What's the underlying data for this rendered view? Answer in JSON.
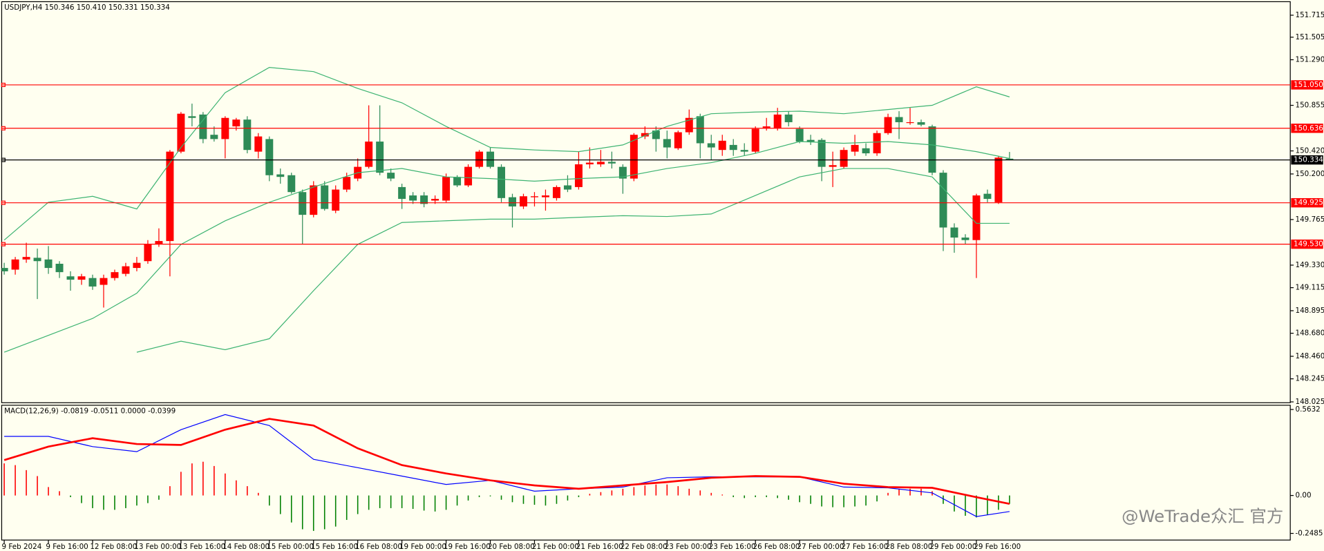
{
  "chart_data": [
    {
      "type": "candlestick",
      "title": "USDJPY,H4  150.346 150.410 150.331 150.334",
      "categories": [
        "9 Feb 2024",
        null,
        null,
        null,
        "9 Feb 16:00",
        null,
        null,
        null,
        "12 Feb 08:00",
        null,
        null,
        null,
        "13 Feb 00:00",
        null,
        null,
        null,
        "13 Feb 16:00",
        null,
        null,
        null,
        "14 Feb 08:00",
        null,
        null,
        null,
        "15 Feb 00:00",
        null,
        null,
        null,
        "15 Feb 16:00",
        null,
        null,
        null,
        "16 Feb 08:00",
        null,
        null,
        null,
        "19 Feb 00:00",
        null,
        null,
        null,
        "19 Feb 16:00",
        null,
        null,
        null,
        "20 Feb 08:00",
        null,
        null,
        null,
        "21 Feb 00:00",
        null,
        null,
        null,
        "21 Feb 16:00",
        null,
        null,
        null,
        "22 Feb 08:00",
        null,
        null,
        null,
        "23 Feb 00:00",
        null,
        null,
        null,
        "23 Feb 16:00",
        null,
        null,
        null,
        "26 Feb 08:00",
        null,
        null,
        null,
        "27 Feb 00:00",
        null,
        null,
        null,
        "27 Feb 16:00",
        null,
        null,
        null,
        "28 Feb 08:00",
        null,
        null,
        null,
        "29 Feb 00:00",
        null,
        null,
        null,
        "29 Feb 16:00",
        null,
        null,
        null
      ],
      "open": [
        149.303,
        149.287,
        149.384,
        149.4,
        149.384,
        149.343,
        149.223,
        149.191,
        149.207,
        149.142,
        149.207,
        149.247,
        149.303,
        149.368,
        149.528,
        149.56,
        150.413,
        150.751,
        150.767,
        150.574,
        150.533,
        150.654,
        150.719,
        150.413,
        150.533,
        150.196,
        150.188,
        150.027,
        149.81,
        150.091,
        149.85,
        150.051,
        150.156,
        150.268,
        150.509,
        150.212,
        150.075,
        149.995,
        149.995,
        149.946,
        149.946,
        150.172,
        150.091,
        150.268,
        150.413,
        150.268,
        149.978,
        149.89,
        149.978,
        149.978,
        149.97,
        150.091,
        150.075,
        150.292,
        150.292,
        150.316,
        150.268,
        150.156,
        150.558,
        150.614,
        150.533,
        150.445,
        150.598,
        150.751,
        150.493,
        150.429,
        150.477,
        150.429,
        150.413,
        150.638,
        150.638,
        150.767,
        150.63,
        150.525,
        150.525,
        150.268,
        150.268,
        150.413,
        150.445,
        150.397,
        150.59,
        150.743,
        150.686,
        150.694,
        150.654,
        150.212,
        149.689,
        149.593,
        149.569,
        150.011,
        149.93,
        150.346
      ],
      "high": [
        149.352,
        149.408,
        149.544,
        149.488,
        149.512,
        149.368,
        149.271,
        149.247,
        149.239,
        149.239,
        149.287,
        149.352,
        149.408,
        149.569,
        149.681,
        150.429,
        150.791,
        150.871,
        150.791,
        150.654,
        150.751,
        150.735,
        150.751,
        150.59,
        150.558,
        150.252,
        150.212,
        150.051,
        150.131,
        150.131,
        150.091,
        150.212,
        150.348,
        150.855,
        150.855,
        150.252,
        150.107,
        150.027,
        150.027,
        149.995,
        150.204,
        150.188,
        150.292,
        150.429,
        150.453,
        150.292,
        150.011,
        150.011,
        150.027,
        150.051,
        150.091,
        150.188,
        150.413,
        150.453,
        150.429,
        150.413,
        150.292,
        150.59,
        150.654,
        150.654,
        150.614,
        150.614,
        150.815,
        150.775,
        150.574,
        150.574,
        150.533,
        150.493,
        150.654,
        150.735,
        150.831,
        150.799,
        150.654,
        150.574,
        150.541,
        150.413,
        150.453,
        150.574,
        150.493,
        150.614,
        150.775,
        150.799,
        150.831,
        150.719,
        150.67,
        150.236,
        149.729,
        149.625,
        150.011,
        150.051,
        150.373,
        150.41
      ],
      "low": [
        149.239,
        149.239,
        149.352,
        149.006,
        149.247,
        149.207,
        149.086,
        149.142,
        149.094,
        148.925,
        149.183,
        149.223,
        149.271,
        149.343,
        149.504,
        149.223,
        150.397,
        150.654,
        150.493,
        150.509,
        150.348,
        150.614,
        150.397,
        150.348,
        150.131,
        150.107,
        150.011,
        149.528,
        149.786,
        149.85,
        149.826,
        150.027,
        150.131,
        150.252,
        150.188,
        150.131,
        149.866,
        149.914,
        149.882,
        149.914,
        149.93,
        150.075,
        150.075,
        150.252,
        150.252,
        149.93,
        149.689,
        149.866,
        149.89,
        149.85,
        149.946,
        150.027,
        150.051,
        150.252,
        150.268,
        150.252,
        150.011,
        150.131,
        150.533,
        150.413,
        150.348,
        150.429,
        150.574,
        150.348,
        150.332,
        150.373,
        150.373,
        150.373,
        150.397,
        150.614,
        150.614,
        150.654,
        150.493,
        150.477,
        150.131,
        150.075,
        150.252,
        150.373,
        150.373,
        150.373,
        150.574,
        150.533,
        150.67,
        150.654,
        150.188,
        149.464,
        149.448,
        149.528,
        149.207,
        149.93,
        149.914,
        150.331
      ],
      "close": [
        149.271,
        149.384,
        149.408,
        149.368,
        149.303,
        149.263,
        149.191,
        149.223,
        149.126,
        149.207,
        149.263,
        149.319,
        149.352,
        149.528,
        149.56,
        150.413,
        150.775,
        150.735,
        150.533,
        150.533,
        150.735,
        150.719,
        150.429,
        150.558,
        150.188,
        150.172,
        150.027,
        149.81,
        150.091,
        149.866,
        150.051,
        150.172,
        150.268,
        150.509,
        150.212,
        150.156,
        149.962,
        149.946,
        149.914,
        149.962,
        150.172,
        150.091,
        150.268,
        150.413,
        150.268,
        149.97,
        149.89,
        149.987,
        149.987,
        149.995,
        150.075,
        150.051,
        150.292,
        150.308,
        150.316,
        150.3,
        150.156,
        150.574,
        150.59,
        150.533,
        150.453,
        150.598,
        150.735,
        150.493,
        150.453,
        150.517,
        150.429,
        150.413,
        150.63,
        150.654,
        150.767,
        150.694,
        150.509,
        150.509,
        150.268,
        150.284,
        150.429,
        150.477,
        150.397,
        150.59,
        150.743,
        150.694,
        150.694,
        150.67,
        150.212,
        149.689,
        149.593,
        149.569,
        149.995,
        149.962,
        150.356,
        150.334
      ],
      "up_color": "#ff0000",
      "down_color": "#2e8b57",
      "ylim": [
        148.017,
        151.844
      ],
      "yticks": [
        151.715,
        151.505,
        {
          "value": 151.29,
          "label": "151.290"
        },
        150.855,
        {
          "value": 150.42,
          "label": "150.420"
        },
        {
          "value": 150.2,
          "label": "150.200"
        },
        149.765,
        {
          "value": 149.33,
          "label": "149.330"
        },
        149.115,
        148.895,
        {
          "value": 148.68,
          "label": "148.680"
        },
        {
          "value": 148.46,
          "label": "148.460"
        },
        148.245,
        148.025
      ],
      "levels": [
        {
          "value": 151.05,
          "label": "151.050",
          "color": "#ff0000"
        },
        {
          "value": 150.636,
          "label": "150.636",
          "color": "#ff0000"
        },
        {
          "value": 150.334,
          "label": "150.334",
          "color": "#000000"
        },
        {
          "value": 149.925,
          "label": "149.925",
          "color": "#ff0000"
        },
        {
          "value": 149.53,
          "label": "149.530",
          "color": "#ff0000"
        }
      ],
      "x": [
        0,
        4,
        8,
        12,
        16,
        20,
        24,
        28,
        32,
        36,
        40,
        44,
        48,
        52,
        56,
        60,
        64,
        68,
        72,
        76,
        80,
        84,
        88,
        91
      ],
      "series": [
        {
          "color": "#3cb371",
          "values": [
            149.569,
            149.93,
            149.987,
            149.866,
            150.453,
            150.976,
            151.217,
            151.177,
            151.016,
            150.879,
            150.654,
            150.453,
            150.429,
            150.413,
            150.477,
            150.654,
            150.775,
            150.791,
            150.799,
            150.775,
            150.815,
            150.855,
            151.032,
            150.935
          ]
        },
        {
          "color": "#3cb371",
          "values": [
            148.499,
            148.66,
            148.821,
            149.062,
            149.528,
            149.753,
            149.93,
            150.075,
            150.212,
            150.252,
            150.172,
            150.156,
            150.131,
            150.156,
            150.172,
            150.252,
            150.308,
            150.397,
            150.509,
            150.493,
            150.509,
            150.477,
            150.413,
            150.348
          ]
        },
        {
          "color": "#3cb371",
          "values": [
            null,
            null,
            null,
            148.499,
            148.604,
            148.523,
            148.628,
            149.086,
            149.528,
            149.737,
            149.753,
            149.769,
            149.769,
            149.786,
            149.802,
            149.794,
            149.818,
            149.995,
            150.172,
            150.252,
            150.252,
            150.172,
            149.729,
            149.729
          ]
        }
      ],
      "watermark": "@WeTrade众汇 官方"
    },
    {
      "type": "macd",
      "title": "MACD(12,26,9) -0.0819 -0.0511 0.0000 -0.0399",
      "x": [
        0,
        4,
        8,
        12,
        16,
        20,
        24,
        28,
        32,
        36,
        40,
        44,
        48,
        52,
        56,
        60,
        64,
        68,
        72,
        76,
        80,
        84,
        88,
        91
      ],
      "series": [
        {
          "color": "#0000ff",
          "values": [
            0.387,
            0.387,
            0.32,
            0.287,
            0.431,
            0.53,
            0.458,
            0.237,
            0.182,
            0.127,
            0.072,
            0.099,
            0.028,
            0.044,
            0.055,
            0.116,
            0.122,
            0.122,
            0.122,
            0.055,
            0.05,
            0.017,
            -0.138,
            -0.105
          ]
        },
        {
          "color": "#ff0000",
          "values": [
            0.232,
            0.32,
            0.375,
            0.337,
            0.331,
            0.431,
            0.502,
            0.458,
            0.309,
            0.199,
            0.144,
            0.099,
            0.066,
            0.044,
            0.066,
            0.088,
            0.116,
            0.127,
            0.122,
            0.077,
            0.055,
            0.05,
            -0.011,
            -0.055
          ]
        }
      ],
      "histogram": {
        "up_color": "#ff0000",
        "down_color": "#008000",
        "values": [
          0.21,
          0.199,
          0.166,
          0.127,
          0.055,
          0.028,
          -0.011,
          -0.05,
          -0.083,
          -0.094,
          -0.094,
          -0.083,
          -0.066,
          -0.05,
          -0.028,
          0.061,
          0.155,
          0.21,
          0.221,
          0.193,
          0.144,
          0.099,
          0.061,
          0.017,
          -0.066,
          -0.122,
          -0.177,
          -0.221,
          -0.232,
          -0.221,
          -0.204,
          -0.16,
          -0.122,
          -0.094,
          -0.083,
          -0.083,
          -0.083,
          -0.088,
          -0.099,
          -0.105,
          -0.094,
          -0.066,
          -0.033,
          -0.011,
          -0.006,
          -0.028,
          -0.044,
          -0.055,
          -0.061,
          -0.066,
          -0.055,
          -0.033,
          -0.011,
          0.011,
          0.022,
          0.033,
          0.044,
          0.055,
          0.066,
          0.072,
          0.072,
          0.061,
          0.044,
          0.033,
          0.017,
          0.006,
          -0.011,
          -0.017,
          -0.011,
          -0.011,
          -0.017,
          -0.028,
          -0.044,
          -0.055,
          -0.072,
          -0.077,
          -0.077,
          -0.072,
          -0.066,
          -0.039,
          0.017,
          0.039,
          0.044,
          0.044,
          0.028,
          -0.055,
          -0.105,
          -0.133,
          -0.144,
          -0.127,
          -0.094,
          -0.055
        ]
      },
      "ylim": [
        -0.292,
        0.591
      ],
      "yticks": [
        0.5632,
        {
          "value": 0,
          "label": "0.00"
        },
        -0.2485
      ]
    }
  ]
}
